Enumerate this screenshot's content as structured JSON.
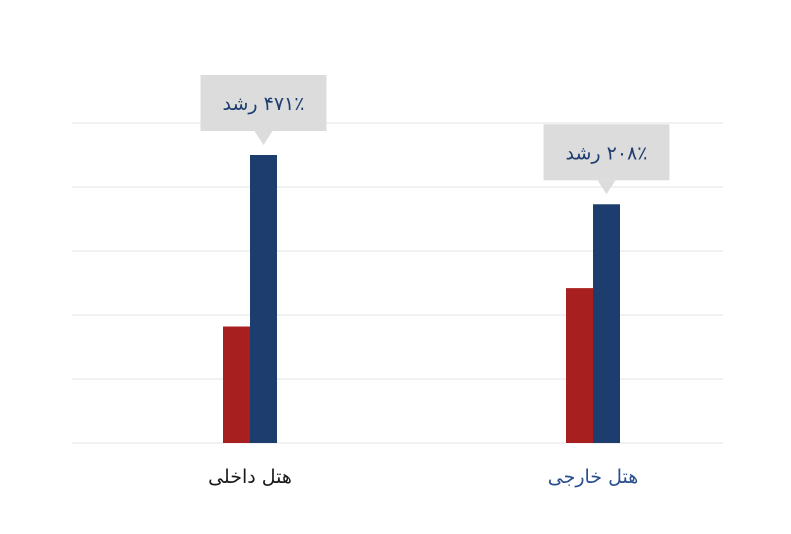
{
  "chart_data": {
    "type": "bar",
    "categories": [
      "هتل داخلی",
      "هتل خارجی"
    ],
    "category_label_colors": [
      "#1a1a1a",
      "#2a4f8e"
    ],
    "series": [
      {
        "values": [
          1.82,
          2.42
        ],
        "color": "#a81f1f"
      },
      {
        "values": [
          4.5,
          3.73
        ],
        "color": "#1c3d6e"
      }
    ],
    "annotations": [
      "۴۷۱٪ رشد",
      "۲۰۸٪ رشد"
    ],
    "annotation_series_index": 1,
    "ylim": [
      0,
      5
    ],
    "grid": true,
    "gridline_count": 6,
    "colors": {
      "gridline": "#e3e3e3",
      "callout_bg": "#dcdcdc",
      "callout_text": "#1c3d6e"
    }
  }
}
